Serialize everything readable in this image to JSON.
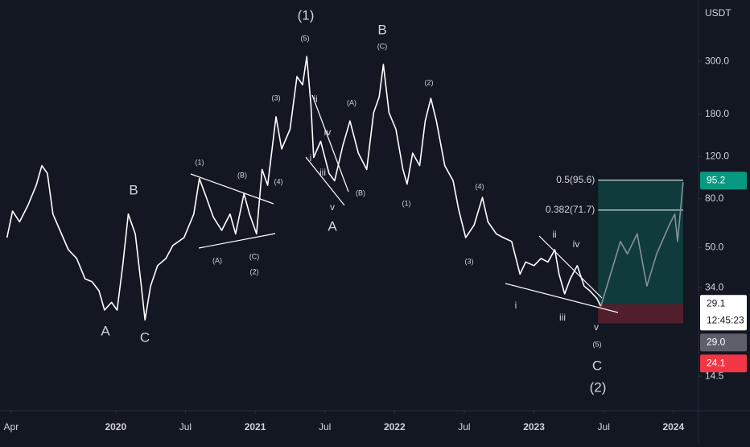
{
  "chart_data": {
    "type": "line",
    "currency": "USDT",
    "log_scale": true,
    "grid": false,
    "xlim": [
      2019.17,
      2024.18
    ],
    "ylim": [
      10.4,
      541
    ],
    "xticks": [
      {
        "value": 2019.25,
        "label": "Apr"
      },
      {
        "value": 2020,
        "label": "2020"
      },
      {
        "value": 2020.5,
        "label": "Jul"
      },
      {
        "value": 2021,
        "label": "2021"
      },
      {
        "value": 2021.5,
        "label": "Jul"
      },
      {
        "value": 2022,
        "label": "2022"
      },
      {
        "value": 2022.5,
        "label": "Jul"
      },
      {
        "value": 2023,
        "label": "2023"
      },
      {
        "value": 2023.5,
        "label": "Jul"
      },
      {
        "value": 2024,
        "label": "2024"
      }
    ],
    "yticks": [
      {
        "value": 300,
        "label": "300.0"
      },
      {
        "value": 180,
        "label": "180.0"
      },
      {
        "value": 120,
        "label": "120.0"
      },
      {
        "value": 80,
        "label": "80.0"
      },
      {
        "value": 50,
        "label": "50.0"
      },
      {
        "value": 34,
        "label": "34.0"
      },
      {
        "value": 14.5,
        "label": "14.5"
      }
    ],
    "series": [
      {
        "color": "#ffffff",
        "x": [
          2019.22,
          2019.26,
          2019.31,
          2019.37,
          2019.43,
          2019.47,
          2019.51,
          2019.55,
          2019.6,
          2019.66,
          2019.72,
          2019.78,
          2019.83,
          2019.88,
          2019.92,
          2019.97,
          2020.01,
          2020.05,
          2020.09,
          2020.14,
          2020.18,
          2020.21,
          2020.25,
          2020.3,
          2020.36,
          2020.41,
          2020.49,
          2020.56,
          2020.6,
          2020.65,
          2020.7,
          2020.76,
          2020.82,
          2020.86,
          2020.92,
          2020.96,
          2021.01,
          2021.05,
          2021.09,
          2021.15,
          2021.19,
          2021.25,
          2021.3,
          2021.34,
          2021.37,
          2021.4,
          2021.42,
          2021.47,
          2021.53,
          2021.57,
          2021.63,
          2021.68,
          2021.74,
          2021.8,
          2021.85,
          2021.89,
          2021.92,
          2021.96,
          2022.01,
          2022.06,
          2022.09,
          2022.13,
          2022.18,
          2022.22,
          2022.26,
          2022.3,
          2022.36,
          2022.42,
          2022.46,
          2022.51,
          2022.57,
          2022.63,
          2022.67,
          2022.73,
          2022.78,
          2022.84,
          2022.9,
          2022.94,
          2023.0,
          2023.05,
          2023.1,
          2023.15,
          2023.18,
          2023.22,
          2023.26,
          2023.31,
          2023.36,
          2023.4,
          2023.45,
          2023.48
        ],
        "values": [
          55,
          71,
          64,
          75,
          91,
          110,
          102,
          69,
          59,
          49,
          45,
          37,
          36,
          33,
          27.4,
          29.5,
          27.4,
          42,
          69,
          57,
          36,
          24.9,
          34.5,
          42,
          45,
          51,
          55,
          69,
          97,
          81,
          67,
          59,
          69,
          57,
          84,
          69,
          57,
          106,
          91,
          176,
          129,
          156,
          259,
          239,
          314,
          197,
          119,
          139,
          102,
          95,
          134,
          169,
          124,
          106,
          183,
          213,
          291,
          183,
          156,
          106,
          92,
          124,
          110,
          169,
          210,
          169,
          110,
          95,
          72,
          55,
          62,
          81,
          64,
          57,
          55,
          53,
          38.7,
          43.5,
          42,
          45,
          43.5,
          49,
          38.7,
          32,
          37,
          42,
          34.5,
          33,
          30.7,
          28.4
        ]
      },
      {
        "color": "#8a8f99",
        "x": [
          2023.48,
          2023.62,
          2023.67,
          2023.74,
          2023.81,
          2023.88,
          2023.97,
          2024.01,
          2024.03,
          2024.07
        ],
        "values": [
          28.4,
          53,
          47,
          57,
          34.5,
          47,
          62,
          69,
          53,
          93.7
        ]
      }
    ],
    "levels": [
      {
        "value": 95.6,
        "label": "0.5(95.6)"
      },
      {
        "value": 71.7,
        "label": "0.382(71.7)"
      }
    ],
    "zone": {
      "x": [
        2023.46,
        2024.07
      ],
      "target": 95.6,
      "entry": 29.0,
      "stop": 24.1,
      "target_color": "rgba(8,153,129,0.28)",
      "stop_color": "rgba(242,54,69,0.28)"
    },
    "price_tags": [
      95.2,
      29.1,
      {
        "value": 29,
        "label": "29.0"
      },
      24.1
    ],
    "price_tag_colors": [
      "#089981",
      "#ffffff",
      "#5d606b",
      "#f23645"
    ],
    "countdown": "12:45:23",
    "annotations": [
      "(1)",
      "(5)",
      "B",
      "(C)",
      "(3)",
      "ii",
      "iv",
      "i",
      "iii",
      "v",
      "A",
      "(4)",
      "(A)",
      "(B)",
      "(1)",
      "(2)",
      "(4)",
      "(3)",
      "(1)",
      "(B)",
      "(A)",
      "(C)",
      "(2)",
      "B",
      "A",
      "C",
      "ii",
      "iv",
      "i",
      "iii",
      "v",
      "(5)",
      "C",
      "(2)"
    ]
  }
}
